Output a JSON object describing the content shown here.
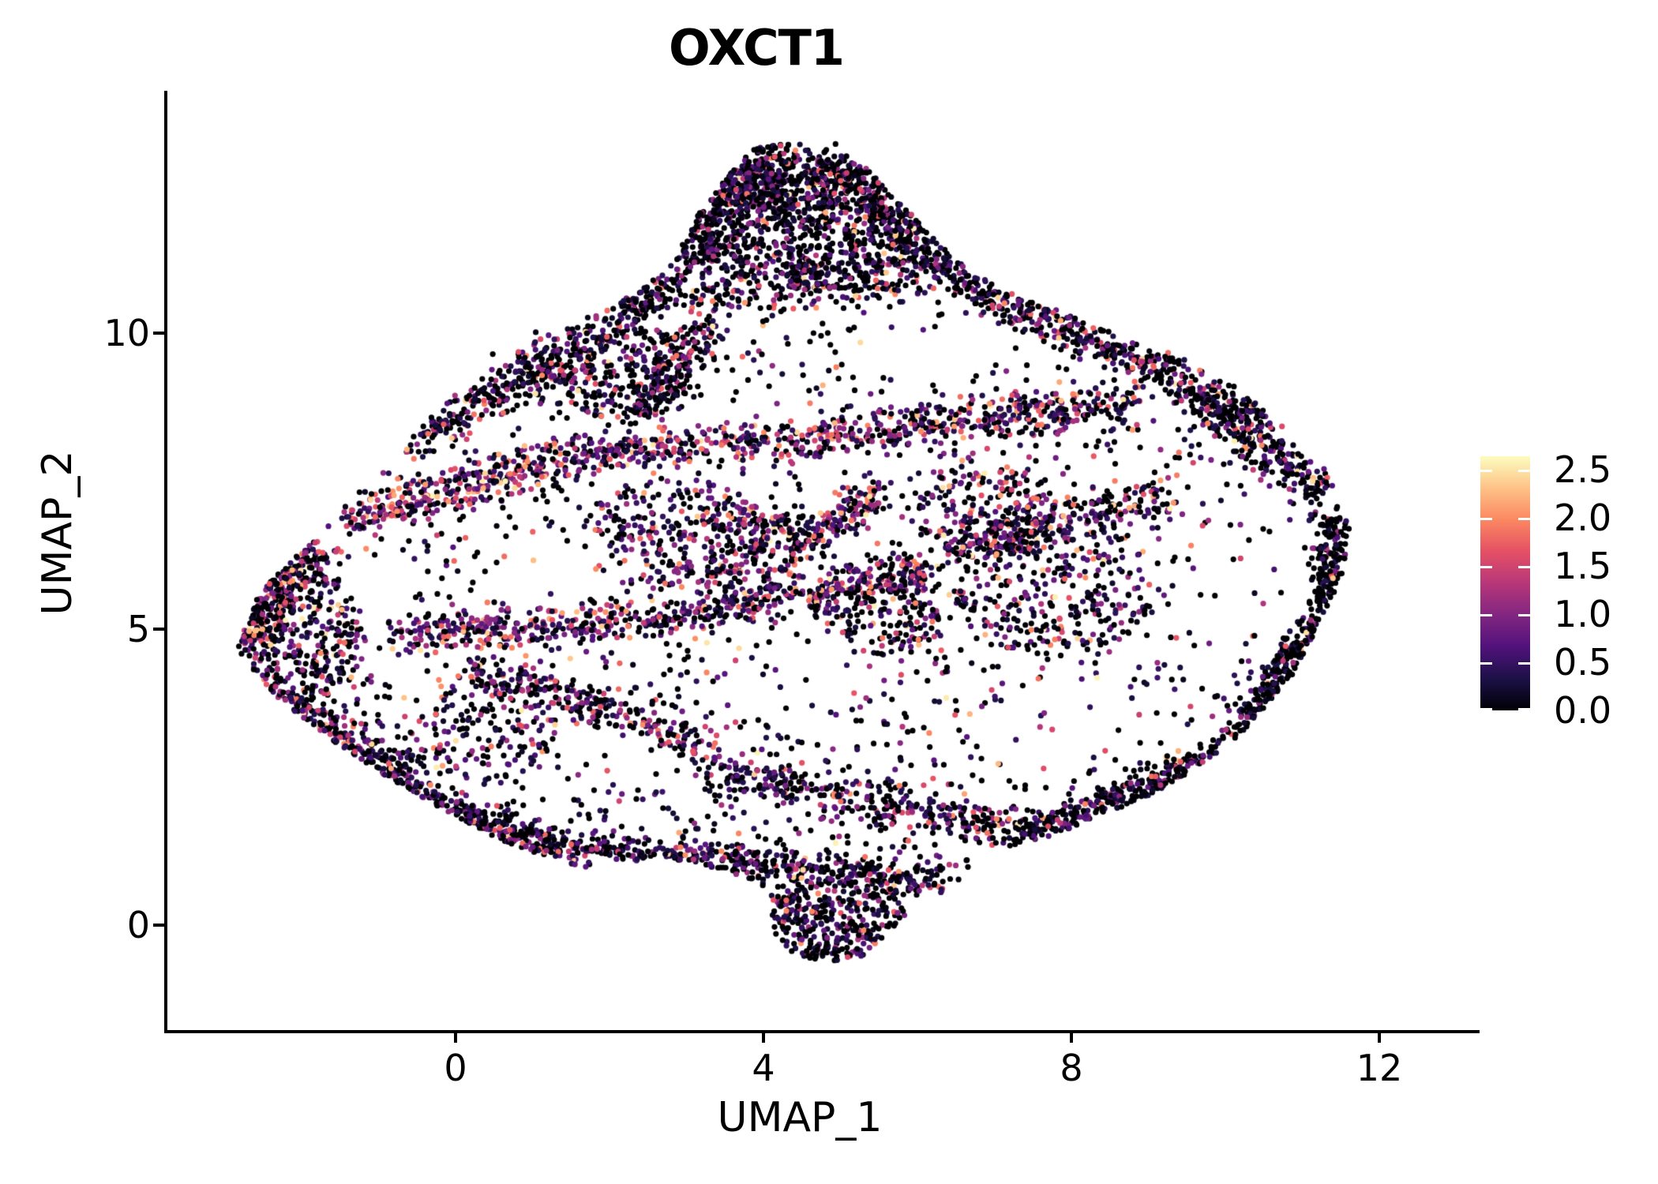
{
  "chart_data": {
    "type": "scatter",
    "title": "OXCT1",
    "xlabel": "UMAP_1",
    "ylabel": "UMAP_2",
    "x_ticks": [
      {
        "value": 0,
        "label": "0"
      },
      {
        "value": 4,
        "label": "4"
      },
      {
        "value": 8,
        "label": "8"
      },
      {
        "value": 12,
        "label": "12"
      }
    ],
    "y_ticks": [
      {
        "value": 0,
        "label": "0"
      },
      {
        "value": 5,
        "label": "5"
      },
      {
        "value": 10,
        "label": "10"
      }
    ],
    "xlim": [
      -3.74,
      13.28
    ],
    "ylim": [
      -1.77,
      14.07
    ],
    "grid": false,
    "legend_position": "right",
    "point_radius_px": 3.6,
    "colorbar": {
      "title": "",
      "vmin": 0.0,
      "vmax": 2.64,
      "ticks": [
        {
          "value": 2.5,
          "label": "2.5"
        },
        {
          "value": 2.0,
          "label": "2.0"
        },
        {
          "value": 1.5,
          "label": "1.5"
        },
        {
          "value": 1.0,
          "label": "1.0"
        },
        {
          "value": 0.5,
          "label": "0.5"
        },
        {
          "value": 0.0,
          "label": "0.0"
        }
      ],
      "colormap_name": "magma",
      "colormap_stops": [
        "#000004",
        "#1c1147",
        "#51127c",
        "#822681",
        "#b73779",
        "#e55064",
        "#fb8861",
        "#fec287",
        "#fcfdbf"
      ]
    },
    "generation": {
      "seed": 42,
      "n_points_approx": 9800,
      "expr_bins": [
        [
          0,
          0
        ],
        [
          0.04,
          0.5
        ],
        [
          0.5,
          1.2
        ],
        [
          1.2,
          2.0
        ],
        [
          2.0,
          2.6
        ]
      ],
      "polygon": [
        [
          -2.85,
          4.65
        ],
        [
          -2.55,
          5.6
        ],
        [
          -1.5,
          7.0
        ],
        [
          -0.3,
          8.6
        ],
        [
          0.7,
          10.0
        ],
        [
          1.8,
          10.35
        ],
        [
          2.7,
          11.0
        ],
        [
          3.2,
          12.1
        ],
        [
          3.8,
          13.05
        ],
        [
          4.35,
          13.45
        ],
        [
          5.0,
          13.2
        ],
        [
          5.6,
          12.45
        ],
        [
          6.25,
          11.55
        ],
        [
          7.0,
          10.8
        ],
        [
          8.0,
          10.3
        ],
        [
          9.0,
          9.8
        ],
        [
          10.0,
          9.3
        ],
        [
          10.6,
          8.6
        ],
        [
          11.3,
          7.7
        ],
        [
          11.62,
          6.8
        ],
        [
          11.52,
          5.9
        ],
        [
          11.15,
          4.9
        ],
        [
          10.85,
          4.15
        ],
        [
          10.1,
          3.1
        ],
        [
          9.2,
          2.3
        ],
        [
          8.3,
          1.8
        ],
        [
          7.4,
          1.35
        ],
        [
          6.5,
          0.72
        ],
        [
          5.8,
          0.05
        ],
        [
          5.3,
          -0.52
        ],
        [
          4.65,
          -0.68
        ],
        [
          4.2,
          -0.32
        ],
        [
          4.05,
          0.35
        ],
        [
          3.6,
          0.9
        ],
        [
          2.7,
          1.15
        ],
        [
          1.7,
          0.95
        ],
        [
          0.8,
          1.3
        ],
        [
          -0.1,
          1.9
        ],
        [
          -1.0,
          2.6
        ],
        [
          -1.8,
          3.3
        ],
        [
          -2.4,
          3.95
        ]
      ],
      "holes": [
        [
          1.5,
          5.85,
          1.15,
          0.9,
          0.92
        ],
        [
          4.85,
          4.4,
          0.68,
          0.8,
          0.9
        ],
        [
          10.05,
          5.6,
          1.15,
          1.55,
          0.95
        ],
        [
          5.95,
          9.75,
          0.8,
          0.75,
          0.85
        ],
        [
          3.35,
          8.3,
          0.7,
          0.8,
          0.85
        ],
        [
          2.3,
          2.9,
          1.05,
          0.7,
          0.75
        ],
        [
          7.6,
          3.2,
          1.0,
          0.8,
          0.7
        ],
        [
          0.8,
          8.85,
          0.8,
          0.6,
          0.8
        ],
        [
          -0.85,
          5.6,
          0.7,
          0.7,
          0.7
        ],
        [
          1.7,
          10.1,
          0.6,
          0.5,
          0.6
        ],
        [
          6.7,
          9.7,
          0.7,
          0.6,
          0.5
        ],
        [
          8.9,
          4.3,
          0.8,
          0.7,
          0.55
        ],
        [
          3.9,
          3.9,
          0.55,
          0.5,
          0.6
        ]
      ],
      "fill": {
        "n": 1900,
        "mix": [
          0.45,
          0.25,
          0.18,
          0.1,
          0.02
        ]
      },
      "clusters": [
        {
          "c": [
            4.55,
            11.85,
            1.55,
            1.15
          ],
          "n": 800,
          "mix": [
            0.48,
            0.28,
            0.15,
            0.08,
            0.01
          ]
        },
        {
          "c": [
            4.3,
            12.6,
            0.85,
            0.6
          ],
          "n": 220,
          "mix": [
            0.55,
            0.27,
            0.12,
            0.05,
            0.01
          ]
        },
        {
          "c": [
            -2.0,
            4.9,
            0.85,
            1.15
          ],
          "n": 300,
          "mix": [
            0.34,
            0.26,
            0.22,
            0.14,
            0.04
          ]
        },
        {
          "c": [
            4.95,
            0.1,
            0.9,
            0.72
          ],
          "n": 300,
          "mix": [
            0.4,
            0.3,
            0.22,
            0.07,
            0.01
          ]
        },
        {
          "c": [
            7.8,
            5.7,
            1.35,
            1.15
          ],
          "n": 280,
          "mix": [
            0.38,
            0.26,
            0.2,
            0.12,
            0.04
          ]
        },
        {
          "c": [
            2.0,
            9.35,
            1.3,
            0.8
          ],
          "n": 260,
          "mix": [
            0.44,
            0.26,
            0.18,
            0.1,
            0.02
          ]
        },
        {
          "c": [
            2.8,
            6.6,
            1.25,
            0.95
          ],
          "n": 240,
          "mix": [
            0.32,
            0.25,
            0.24,
            0.14,
            0.05
          ]
        },
        {
          "c": [
            5.5,
            5.4,
            0.85,
            0.85
          ],
          "n": 180,
          "mix": [
            0.36,
            0.26,
            0.22,
            0.12,
            0.04
          ]
        },
        {
          "c": [
            0.3,
            3.3,
            1.05,
            0.85
          ],
          "n": 150,
          "mix": [
            0.4,
            0.27,
            0.21,
            0.1,
            0.02
          ]
        },
        {
          "c": [
            9.68,
            2.2,
            0.15,
            0.15
          ],
          "n": 8,
          "mix": [
            0.3,
            0.3,
            0.3,
            0.1,
            0.0
          ]
        },
        {
          "c": [
            6.9,
            7.0,
            0.9,
            0.8
          ],
          "n": 180,
          "mix": [
            0.3,
            0.24,
            0.25,
            0.16,
            0.05
          ]
        },
        {
          "c": [
            3.9,
            6.2,
            0.6,
            0.9
          ],
          "n": 160,
          "mix": [
            0.3,
            0.26,
            0.25,
            0.14,
            0.05
          ]
        }
      ],
      "strips": [
        {
          "s": [
            -1.4,
            6.85,
            1.6,
            7.95,
            0.55
          ],
          "n": 340,
          "mix": [
            0.16,
            0.2,
            0.3,
            0.24,
            0.1
          ]
        },
        {
          "s": [
            1.6,
            7.95,
            5.2,
            8.3,
            0.5
          ],
          "n": 300,
          "mix": [
            0.2,
            0.22,
            0.28,
            0.22,
            0.08
          ]
        },
        {
          "s": [
            5.2,
            8.3,
            8.8,
            8.85,
            0.6
          ],
          "n": 330,
          "mix": [
            0.28,
            0.22,
            0.26,
            0.18,
            0.06
          ]
        },
        {
          "s": [
            -0.9,
            4.85,
            3.3,
            5.3,
            0.5
          ],
          "n": 330,
          "mix": [
            0.22,
            0.24,
            0.28,
            0.2,
            0.06
          ]
        },
        {
          "s": [
            3.3,
            5.3,
            6.2,
            6.0,
            0.5
          ],
          "n": 220,
          "mix": [
            0.3,
            0.25,
            0.25,
            0.15,
            0.05
          ]
        },
        {
          "s": [
            -1.1,
            2.4,
            1.2,
            1.35,
            0.5
          ],
          "n": 250,
          "mix": [
            0.38,
            0.27,
            0.22,
            0.11,
            0.02
          ]
        },
        {
          "s": [
            1.2,
            1.35,
            3.9,
            1.05,
            0.45
          ],
          "n": 230,
          "mix": [
            0.38,
            0.27,
            0.22,
            0.11,
            0.02
          ]
        },
        {
          "s": [
            3.9,
            1.05,
            6.4,
            0.72,
            0.45
          ],
          "n": 210,
          "mix": [
            0.42,
            0.27,
            0.2,
            0.09,
            0.02
          ]
        },
        {
          "s": [
            3.2,
            2.6,
            7.6,
            1.55,
            0.55
          ],
          "n": 340,
          "mix": [
            0.4,
            0.28,
            0.2,
            0.1,
            0.02
          ]
        },
        {
          "s": [
            7.6,
            1.55,
            10.1,
            2.95,
            0.5
          ],
          "n": 250,
          "mix": [
            0.5,
            0.25,
            0.15,
            0.08,
            0.02
          ]
        },
        {
          "s": [
            10.15,
            3.05,
            11.25,
            5.1,
            0.45
          ],
          "n": 200,
          "mix": [
            0.62,
            0.21,
            0.11,
            0.05,
            0.01
          ]
        },
        {
          "s": [
            11.3,
            5.3,
            11.45,
            6.9,
            0.42
          ],
          "n": 150,
          "mix": [
            0.66,
            0.2,
            0.09,
            0.04,
            0.01
          ]
        },
        {
          "s": [
            11.25,
            7.3,
            9.75,
            8.8,
            0.5
          ],
          "n": 220,
          "mix": [
            0.52,
            0.24,
            0.15,
            0.07,
            0.02
          ]
        },
        {
          "s": [
            -2.75,
            4.7,
            -1.85,
            6.45,
            0.5
          ],
          "n": 210,
          "mix": [
            0.34,
            0.26,
            0.22,
            0.14,
            0.04
          ]
        },
        {
          "s": [
            -2.5,
            4.0,
            -0.7,
            2.55,
            0.5
          ],
          "n": 200,
          "mix": [
            0.38,
            0.26,
            0.21,
            0.12,
            0.03
          ]
        },
        {
          "s": [
            -0.85,
            8.05,
            1.5,
            9.6,
            0.55
          ],
          "n": 230,
          "mix": [
            0.45,
            0.27,
            0.17,
            0.09,
            0.02
          ]
        },
        {
          "s": [
            1.5,
            9.6,
            2.85,
            10.9,
            0.5
          ],
          "n": 180,
          "mix": [
            0.48,
            0.27,
            0.15,
            0.08,
            0.02
          ]
        },
        {
          "s": [
            2.95,
            11.0,
            4.1,
            13.05,
            0.55
          ],
          "n": 210,
          "mix": [
            0.5,
            0.28,
            0.14,
            0.07,
            0.01
          ]
        },
        {
          "s": [
            4.9,
            12.85,
            6.45,
            11.0,
            0.55
          ],
          "n": 210,
          "mix": [
            0.5,
            0.28,
            0.14,
            0.07,
            0.01
          ]
        },
        {
          "s": [
            6.5,
            10.9,
            8.6,
            9.7,
            0.55
          ],
          "n": 230,
          "mix": [
            0.46,
            0.26,
            0.17,
            0.09,
            0.02
          ]
        },
        {
          "s": [
            8.6,
            9.7,
            10.55,
            8.5,
            0.5
          ],
          "n": 200,
          "mix": [
            0.46,
            0.25,
            0.18,
            0.09,
            0.02
          ]
        },
        {
          "s": [
            0.2,
            4.35,
            3.3,
            3.0,
            0.5
          ],
          "n": 230,
          "mix": [
            0.35,
            0.28,
            0.23,
            0.12,
            0.02
          ]
        },
        {
          "s": [
            6.3,
            6.3,
            9.3,
            7.3,
            0.6
          ],
          "n": 250,
          "mix": [
            0.34,
            0.25,
            0.22,
            0.14,
            0.05
          ]
        },
        {
          "s": [
            2.35,
            8.6,
            3.3,
            10.2,
            0.5
          ],
          "n": 160,
          "mix": [
            0.4,
            0.27,
            0.2,
            0.11,
            0.02
          ]
        },
        {
          "s": [
            4.35,
            6.35,
            5.5,
            7.35,
            0.5
          ],
          "n": 150,
          "mix": [
            0.25,
            0.22,
            0.28,
            0.18,
            0.07
          ]
        },
        {
          "s": [
            3.0,
            10.6,
            6.0,
            10.9,
            0.5
          ],
          "n": 150,
          "mix": [
            0.42,
            0.27,
            0.18,
            0.1,
            0.03
          ]
        }
      ]
    }
  }
}
